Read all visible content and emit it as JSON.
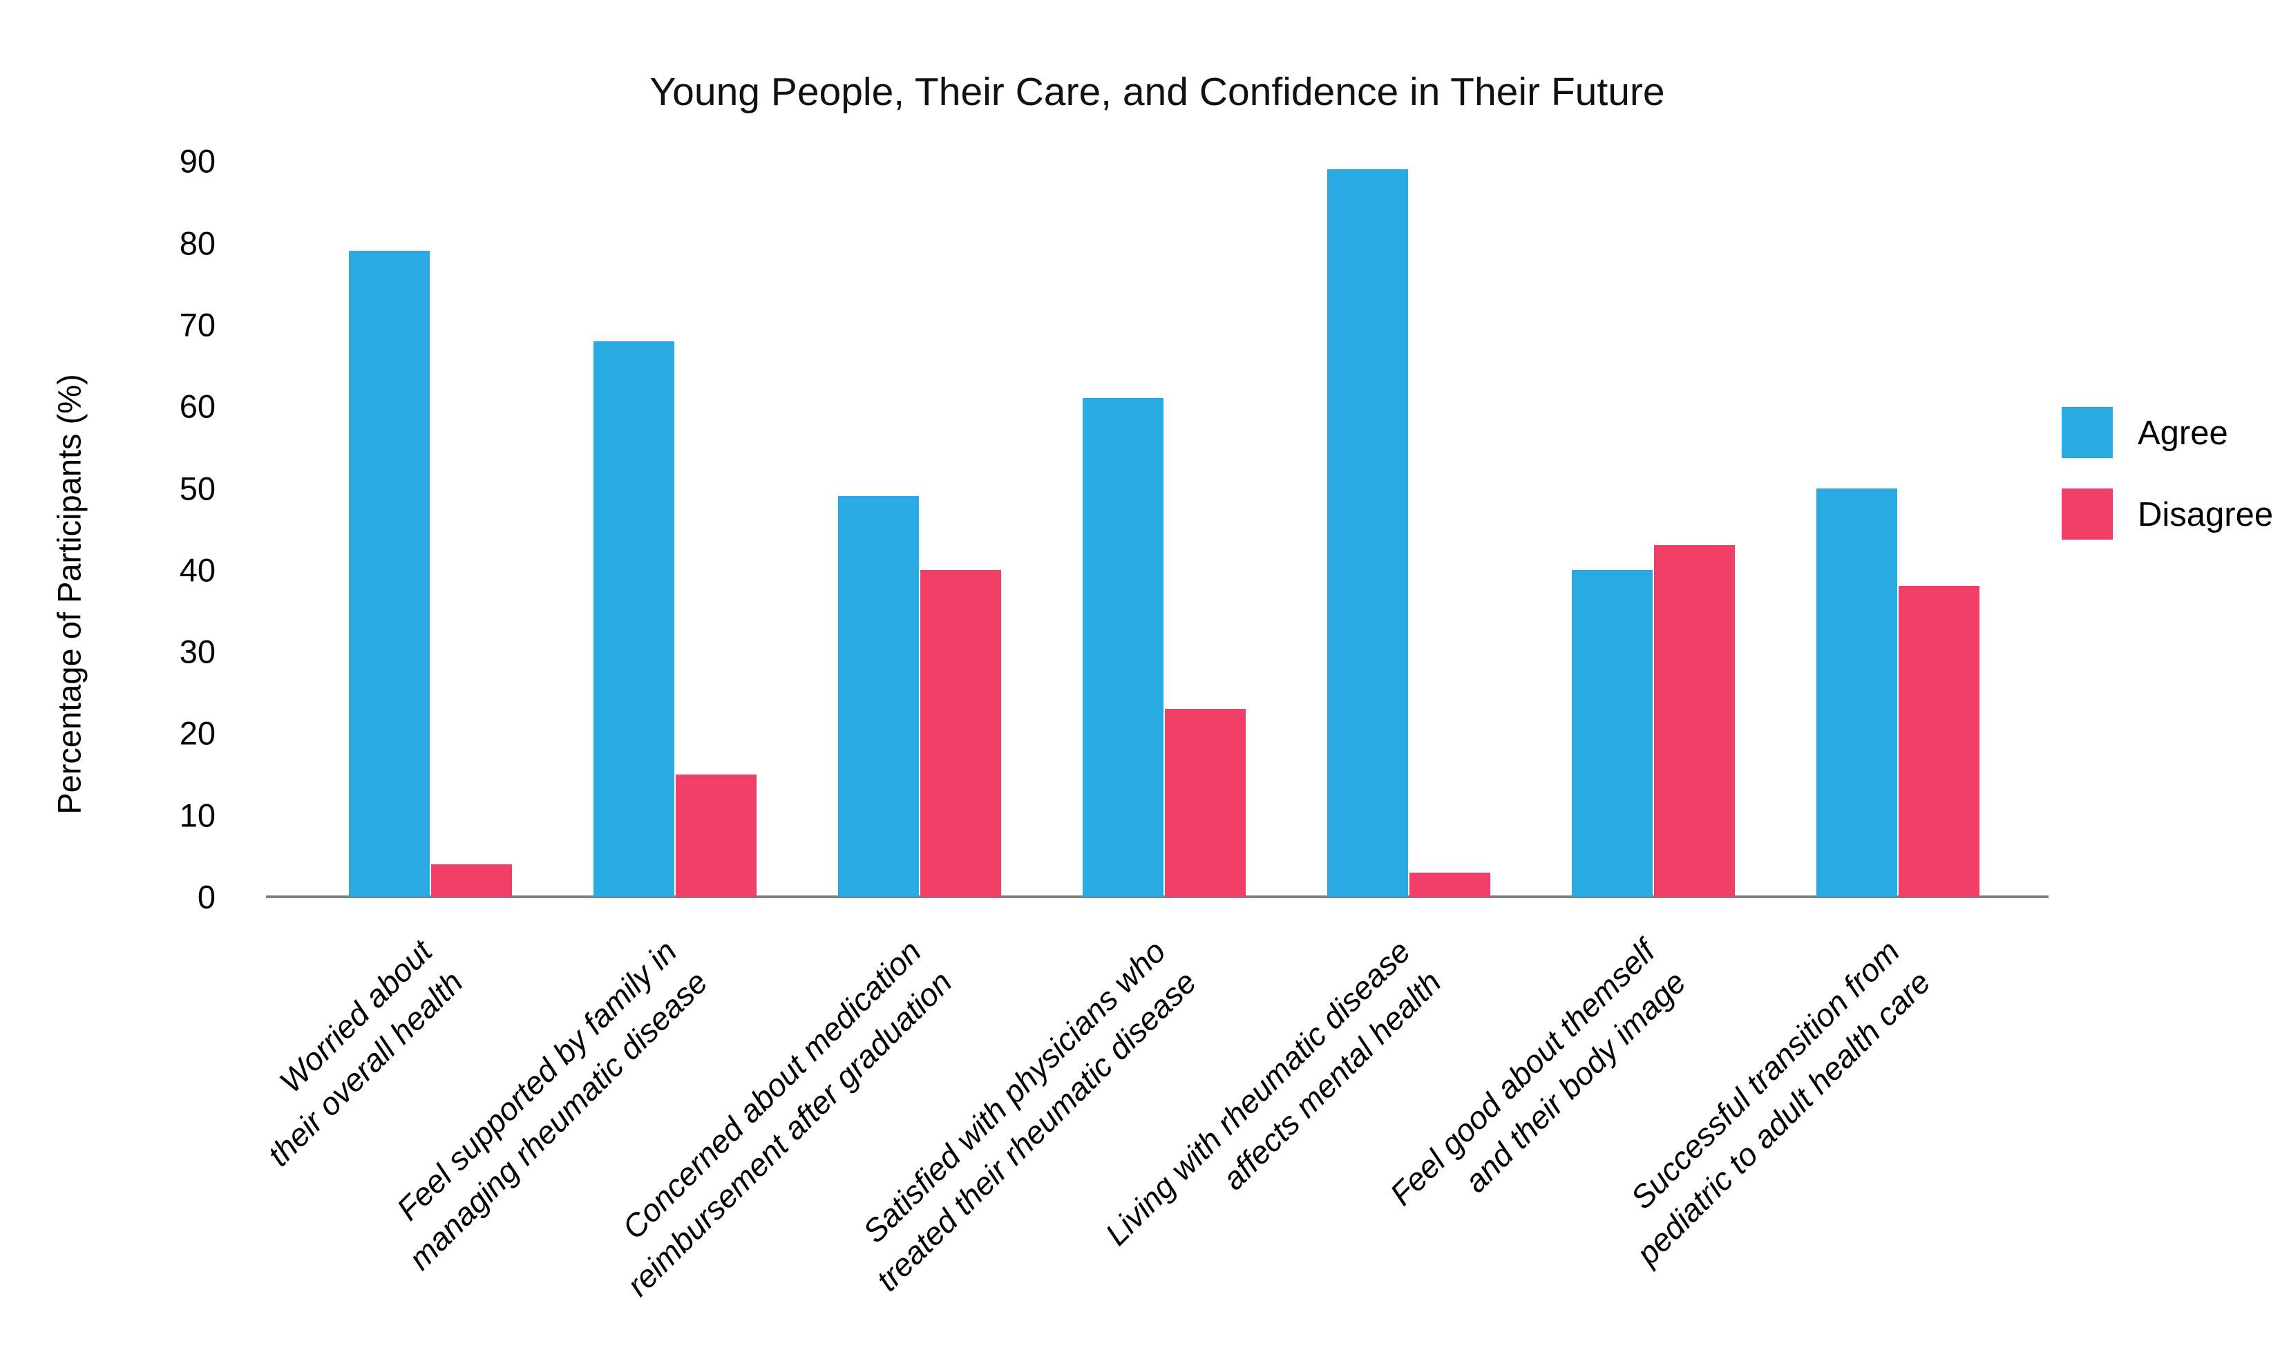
{
  "title": "Young People, Their Care, and Confidence in Their Future",
  "y_axis_label": "Percentage of Participants (%)",
  "legend": {
    "agree_label": "Agree",
    "disagree_label": "Disagree"
  },
  "colors": {
    "agree": "#29ABE2",
    "disagree": "#EF3F67",
    "axis": "#808080"
  },
  "chart_data": {
    "type": "bar",
    "title": "Young People, Their Care, and Confidence in Their Future",
    "xlabel": "",
    "ylabel": "Percentage of Participants (%)",
    "ylim": [
      0,
      90
    ],
    "yticks": [
      0,
      10,
      20,
      30,
      40,
      50,
      60,
      70,
      80,
      90
    ],
    "grid": false,
    "legend_position": "right",
    "bar_style": "grouped pairs, rotated 45-degree italic category labels",
    "categories": [
      [
        "Worried about",
        "their overall health"
      ],
      [
        "Feel supported by family in",
        "managing rheumatic disease"
      ],
      [
        "Concerned about medication",
        "reimbursement after graduation"
      ],
      [
        "Satisfied with physicians who",
        "treated their rheumatic disease"
      ],
      [
        "Living with rheumatic disease",
        "affects mental health"
      ],
      [
        "Feel good about themself",
        "and their body image"
      ],
      [
        "Successful transition from",
        "pediatric to adult health care"
      ]
    ],
    "series": [
      {
        "name": "Agree",
        "color": "#29ABE2",
        "values": [
          79,
          68,
          49,
          61,
          89,
          40,
          50
        ]
      },
      {
        "name": "Disagree",
        "color": "#EF3F67",
        "values": [
          4,
          15,
          40,
          23,
          3,
          43,
          38
        ]
      }
    ]
  }
}
